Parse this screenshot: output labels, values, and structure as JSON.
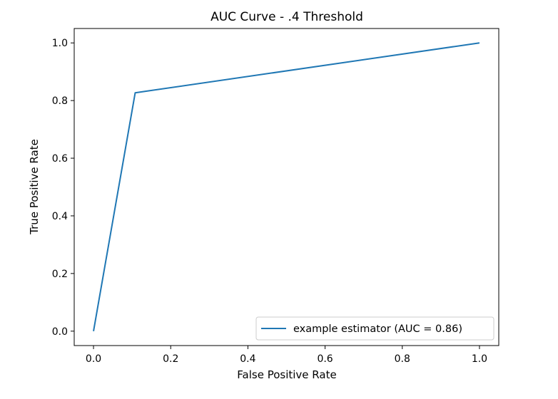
{
  "chart_data": {
    "type": "line",
    "title": "AUC Curve - .4 Threshold",
    "xlabel": "False Positive Rate",
    "ylabel": "True Positive Rate",
    "xlim": [
      -0.05,
      1.05
    ],
    "ylim": [
      -0.05,
      1.05
    ],
    "xticks": [
      0.0,
      0.2,
      0.4,
      0.6,
      0.8,
      1.0
    ],
    "yticks": [
      0.0,
      0.2,
      0.4,
      0.6,
      0.8,
      1.0
    ],
    "xtick_labels": [
      "0.0",
      "0.2",
      "0.4",
      "0.6",
      "0.8",
      "1.0"
    ],
    "ytick_labels": [
      "0.0",
      "0.2",
      "0.4",
      "0.6",
      "0.8",
      "1.0"
    ],
    "grid": false,
    "legend_position": "lower-right",
    "series": [
      {
        "name": "example estimator (AUC = 0.86)",
        "color": "#1f77b4",
        "x": [
          0.0,
          0.108,
          1.0
        ],
        "y": [
          0.0,
          0.827,
          1.0
        ]
      }
    ]
  }
}
